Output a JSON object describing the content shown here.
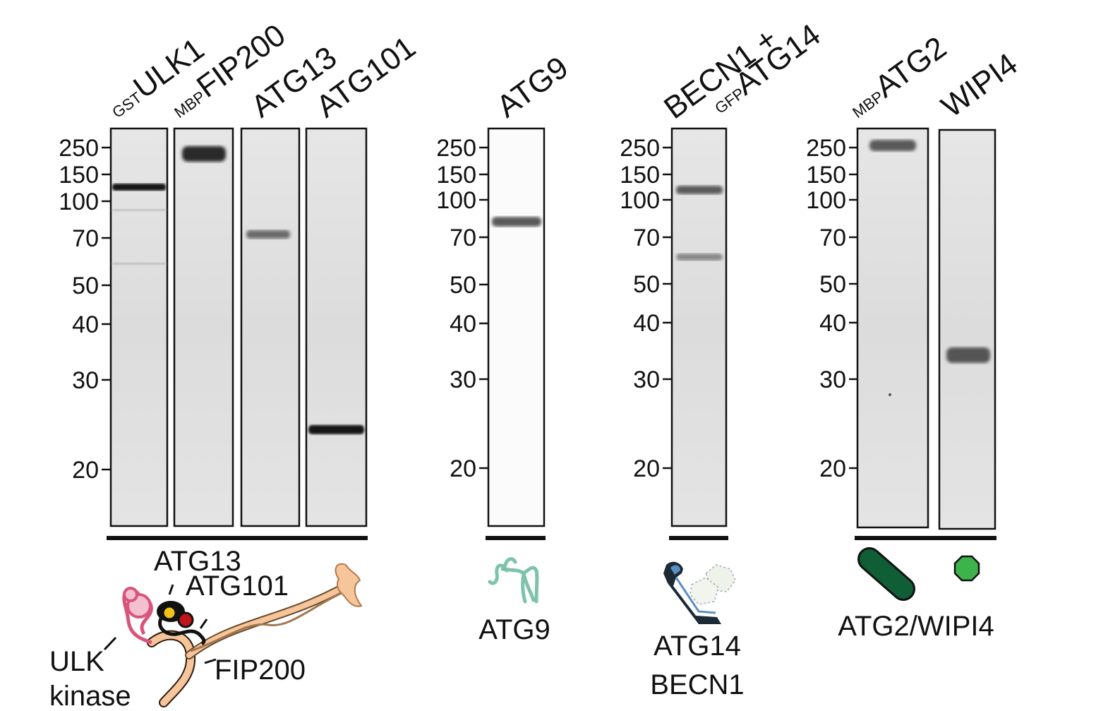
{
  "colors": {
    "lane_bg": "#e2e2e2",
    "lane_bg_white": "#fbfbfb",
    "band": "#151515",
    "frame": "#111111",
    "atg9_teal": "#7cc3aa",
    "atg2_green": "#0f5e36",
    "wipi4_green": "#3cb44b",
    "fip200_peach": "#f6c59a",
    "ulk_pink": "#d9547a",
    "atg13_black": "#111111",
    "atg13_yellow": "#f2c21b",
    "atg101_red": "#c0151a",
    "becn1_blue": "#5b8fc4",
    "atg14_dark": "#1c2a36"
  },
  "mw_markers": [
    "250",
    "150",
    "100",
    "70",
    "50",
    "40",
    "30",
    "20"
  ],
  "panels": [
    {
      "lanes": [
        {
          "tag": "GST",
          "name": "ULK1",
          "bands_kda": [
            130
          ]
        },
        {
          "tag": "MBP",
          "name": "FIP200",
          "bands_kda": [
            240
          ]
        },
        {
          "tag": "",
          "name": "ATG13",
          "bands_kda": [
            72
          ]
        },
        {
          "tag": "",
          "name": "ATG101",
          "bands_kda": [
            24
          ]
        }
      ],
      "cartoon_labels": [
        "ATG13",
        "ATG101",
        "ULK",
        "kinase",
        "FIP200"
      ]
    },
    {
      "lanes": [
        {
          "tag": "",
          "name": "ATG9",
          "bands_kda": [
            80
          ]
        }
      ],
      "cartoon_labels": [
        "ATG9"
      ]
    },
    {
      "lanes": [
        {
          "prefix": "BECN1 +",
          "tag": "GFP",
          "name": "ATG14",
          "bands_kda": [
            120,
            62
          ]
        }
      ],
      "cartoon_labels": [
        "ATG14",
        "BECN1"
      ]
    },
    {
      "lanes": [
        {
          "tag": "MBP",
          "name": "ATG2",
          "bands_kda": [
            245
          ]
        },
        {
          "tag": "",
          "name": "WIPI4",
          "bands_kda": [
            36
          ]
        }
      ],
      "cartoon_labels": [
        "ATG2/WIPI4"
      ]
    }
  ],
  "icons": [
    "ulk-complex-icon",
    "atg9-icon",
    "pi3k-complex-icon",
    "atg2-rod-icon",
    "wipi4-octagon-icon"
  ]
}
